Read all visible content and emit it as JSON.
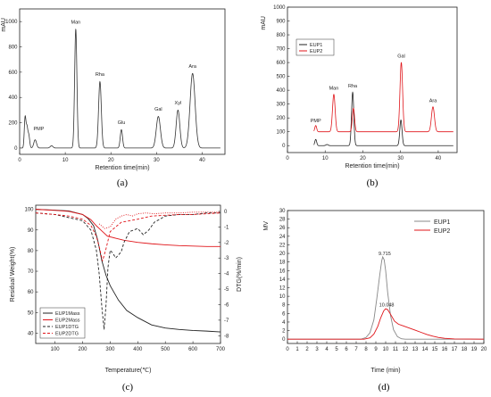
{
  "chart_data": [
    {
      "id": "a",
      "panel_label": "(a)",
      "type": "line",
      "xlabel": "Retention time(min)",
      "ylabel": "mAU",
      "xlim": [
        0,
        45
      ],
      "ylim": [
        -50,
        1100
      ],
      "xticks": [
        0,
        10,
        20,
        30,
        40
      ],
      "yticks": [
        0,
        200,
        400,
        600,
        800,
        1000
      ],
      "colors": {
        "trace": "#333333"
      },
      "peaks": [
        {
          "x": 1.2,
          "h": 240,
          "w": 0.18
        },
        {
          "x": 1.6,
          "h": 150,
          "w": 0.18
        },
        {
          "x": 2.0,
          "h": 100,
          "w": 0.2
        },
        {
          "x": 3.4,
          "h": 65,
          "w": 0.3
        },
        {
          "x": 7.0,
          "h": 18,
          "w": 0.3
        },
        {
          "x": 12.3,
          "h": 940,
          "w": 0.25
        },
        {
          "x": 17.6,
          "h": 525,
          "w": 0.3
        },
        {
          "x": 22.3,
          "h": 145,
          "w": 0.25
        },
        {
          "x": 30.4,
          "h": 250,
          "w": 0.45
        },
        {
          "x": 34.7,
          "h": 300,
          "w": 0.4
        },
        {
          "x": 37.9,
          "h": 590,
          "w": 0.55
        }
      ],
      "annotations": [
        {
          "text": "PMP",
          "x": 4.2,
          "y": 140
        },
        {
          "text": "Man",
          "x": 12.3,
          "y": 985
        },
        {
          "text": "Rha",
          "x": 17.6,
          "y": 570
        },
        {
          "text": "Glu",
          "x": 22.3,
          "y": 190
        },
        {
          "text": "Gal",
          "x": 30.4,
          "y": 295
        },
        {
          "text": "Xyl",
          "x": 34.7,
          "y": 345
        },
        {
          "text": "Ara",
          "x": 37.9,
          "y": 635
        }
      ]
    },
    {
      "id": "b",
      "panel_label": "(b)",
      "type": "line",
      "xlabel": "Retention time(min)",
      "ylabel": "mAU",
      "xlim": [
        0,
        45
      ],
      "ylim": [
        -50,
        1000
      ],
      "xticks": [
        0,
        10,
        20,
        30,
        40
      ],
      "yticks": [
        0,
        100,
        200,
        300,
        400,
        500,
        600,
        700,
        800,
        900,
        1000
      ],
      "legend": {
        "position": "top-left",
        "entries": [
          "EUP1",
          "EUP2"
        ]
      },
      "series": [
        {
          "name": "EUP1",
          "color": "#222222",
          "baseline": 0,
          "peaks": [
            {
              "x": 7.5,
              "h": 45,
              "w": 0.25
            },
            {
              "x": 10.5,
              "h": 8,
              "w": 0.3
            },
            {
              "x": 17.3,
              "h": 385,
              "w": 0.3
            },
            {
              "x": 30.1,
              "h": 185,
              "w": 0.3
            }
          ]
        },
        {
          "name": "EUP2",
          "color": "#e0151a",
          "baseline": 100,
          "peaks": [
            {
              "x": 7.5,
              "h": 45,
              "w": 0.25
            },
            {
              "x": 12.3,
              "h": 270,
              "w": 0.35
            },
            {
              "x": 17.5,
              "h": 170,
              "w": 0.3
            },
            {
              "x": 30.2,
              "h": 500,
              "w": 0.35
            },
            {
              "x": 38.6,
              "h": 180,
              "w": 0.4
            }
          ]
        }
      ],
      "annotations": [
        {
          "text": "PMP",
          "x": 7.5,
          "y": 170
        },
        {
          "text": "Man",
          "x": 12.3,
          "y": 405
        },
        {
          "text": "Rha",
          "x": 17.3,
          "y": 420
        },
        {
          "text": "Gal",
          "x": 30.2,
          "y": 635
        },
        {
          "text": "Ara",
          "x": 38.6,
          "y": 315
        }
      ]
    },
    {
      "id": "c",
      "panel_label": "(c)",
      "type": "line",
      "xlabel": "Temperature(℃)",
      "ylabel": "Residual Weight(%)",
      "y2label": "DTG(%/min)",
      "xlim": [
        30,
        700
      ],
      "ylim": [
        35,
        102
      ],
      "y2lim": [
        -8.5,
        0.4
      ],
      "xticks": [
        100,
        200,
        300,
        400,
        500,
        600,
        700
      ],
      "yticks": [
        40,
        50,
        60,
        70,
        80,
        90,
        100
      ],
      "y2ticks": [
        0,
        -1,
        -2,
        -3,
        -4,
        -5,
        -6,
        -7,
        -8
      ],
      "legend": {
        "position": "bottom-left",
        "entries": [
          "EUP1Mass",
          "EUP2Mass",
          "EUP1DTG",
          "EUP2DTG"
        ]
      },
      "series": [
        {
          "name": "EUP1Mass",
          "color": "#222222",
          "dash": "",
          "axis": "left",
          "x": [
            30,
            100,
            150,
            200,
            220,
            240,
            255,
            270,
            285,
            300,
            330,
            360,
            400,
            450,
            500,
            550,
            600,
            650,
            700
          ],
          "y": [
            100,
            99.6,
            99.2,
            97.5,
            95.5,
            92,
            85,
            75,
            68,
            63,
            56,
            51,
            47.5,
            44,
            42.5,
            41.8,
            41.3,
            41,
            40.6
          ]
        },
        {
          "name": "EUP2Mass",
          "color": "#e0151a",
          "dash": "",
          "axis": "left",
          "x": [
            30,
            100,
            150,
            200,
            230,
            250,
            270,
            290,
            320,
            350,
            400,
            450,
            500,
            550,
            600,
            650,
            700
          ],
          "y": [
            100,
            99.5,
            99,
            97.5,
            95,
            92,
            89.5,
            87,
            86,
            85,
            84,
            83.3,
            82.8,
            82.4,
            82.2,
            82,
            82
          ]
        },
        {
          "name": "EUP1DTG",
          "color": "#222222",
          "dash": "3,2",
          "axis": "right",
          "x": [
            30,
            100,
            150,
            200,
            230,
            250,
            260,
            270,
            278,
            285,
            292,
            300,
            310,
            320,
            330,
            340,
            350,
            370,
            400,
            420,
            440,
            460,
            500,
            550,
            600,
            650,
            700
          ],
          "y": [
            -0.1,
            -0.2,
            -0.4,
            -0.6,
            -1.2,
            -2.5,
            -4.0,
            -6.2,
            -7.6,
            -6.0,
            -3.6,
            -2.5,
            -2.7,
            -3.0,
            -2.8,
            -2.6,
            -2.0,
            -1.3,
            -1.1,
            -1.5,
            -1.2,
            -0.7,
            -0.3,
            -0.2,
            -0.2,
            -0.1,
            -0.1
          ]
        },
        {
          "name": "EUP2DTG",
          "color": "#e0151a",
          "dash": "3,2",
          "axis": "right",
          "x": [
            30,
            100,
            150,
            200,
            230,
            250,
            262,
            272,
            285,
            300,
            320,
            340,
            370,
            400,
            450,
            500,
            550,
            600,
            650,
            700
          ],
          "y": [
            -0.1,
            -0.2,
            -0.3,
            -0.5,
            -0.9,
            -1.6,
            -2.4,
            -3.2,
            -2.4,
            -1.3,
            -1.0,
            -0.7,
            -0.6,
            -0.5,
            -0.3,
            -0.25,
            -0.2,
            -0.2,
            -0.15,
            -0.1
          ]
        },
        {
          "name": "EUP2DTG-dot",
          "color": "#e0151a",
          "dash": "1,1.5",
          "axis": "right",
          "x": [
            260,
            280,
            300,
            320,
            340,
            360,
            380,
            400,
            430,
            460,
            500,
            550,
            600,
            650,
            700
          ],
          "y": [
            -0.8,
            -1.1,
            -1.0,
            -0.5,
            -0.3,
            -0.2,
            -0.3,
            -0.15,
            -0.1,
            -0.15,
            -0.1,
            -0.1,
            -0.05,
            -0.05,
            -0.05
          ]
        }
      ]
    },
    {
      "id": "d",
      "panel_label": "(d)",
      "type": "line",
      "xlabel": "Time (min)",
      "ylabel": "MV",
      "xlim": [
        0,
        20
      ],
      "ylim": [
        -1,
        30
      ],
      "xticks": [
        0,
        1,
        2,
        3,
        4,
        5,
        6,
        7,
        8,
        9,
        10,
        11,
        12,
        13,
        14,
        15,
        16,
        17,
        18,
        19,
        20
      ],
      "yticks": [
        0,
        2,
        4,
        6,
        8,
        10,
        12,
        14,
        16,
        18,
        20,
        22,
        24,
        26,
        28,
        30
      ],
      "legend": {
        "position": "top-right",
        "entries": [
          "EUP1",
          "EUP2"
        ]
      },
      "series": [
        {
          "name": "EUP1",
          "color": "#888888",
          "x": [
            0,
            7.5,
            8.0,
            8.4,
            8.8,
            9.1,
            9.4,
            9.6,
            9.7,
            9.85,
            10.0,
            10.2,
            10.5,
            10.8,
            11.2,
            11.6,
            12.0,
            20
          ],
          "y": [
            0,
            0,
            0.4,
            1.5,
            4.5,
            9.5,
            15,
            18.3,
            19.2,
            18.5,
            16,
            11,
            5.5,
            2.2,
            0.6,
            0.1,
            0,
            0
          ]
        },
        {
          "name": "EUP2",
          "color": "#e0151a",
          "x": [
            0,
            7.8,
            8.4,
            8.8,
            9.2,
            9.5,
            9.8,
            10.0,
            10.2,
            10.5,
            10.9,
            11.3,
            11.8,
            12.4,
            13.0,
            13.6,
            14.2,
            14.8,
            15.4,
            16.0,
            17.0,
            20
          ],
          "y": [
            0,
            0,
            0.3,
            1.2,
            3.0,
            5.0,
            6.6,
            7.1,
            6.9,
            5.8,
            4.2,
            3.5,
            3.1,
            2.6,
            2.1,
            1.6,
            1.1,
            0.7,
            0.4,
            0.2,
            0.05,
            0
          ]
        }
      ],
      "annotations": [
        {
          "text": "9.715",
          "x": 9.9,
          "y": 19.6,
          "color": "#222222"
        },
        {
          "text": "10.048",
          "x": 10.1,
          "y": 7.6,
          "color": "#e0151a"
        }
      ]
    }
  ]
}
